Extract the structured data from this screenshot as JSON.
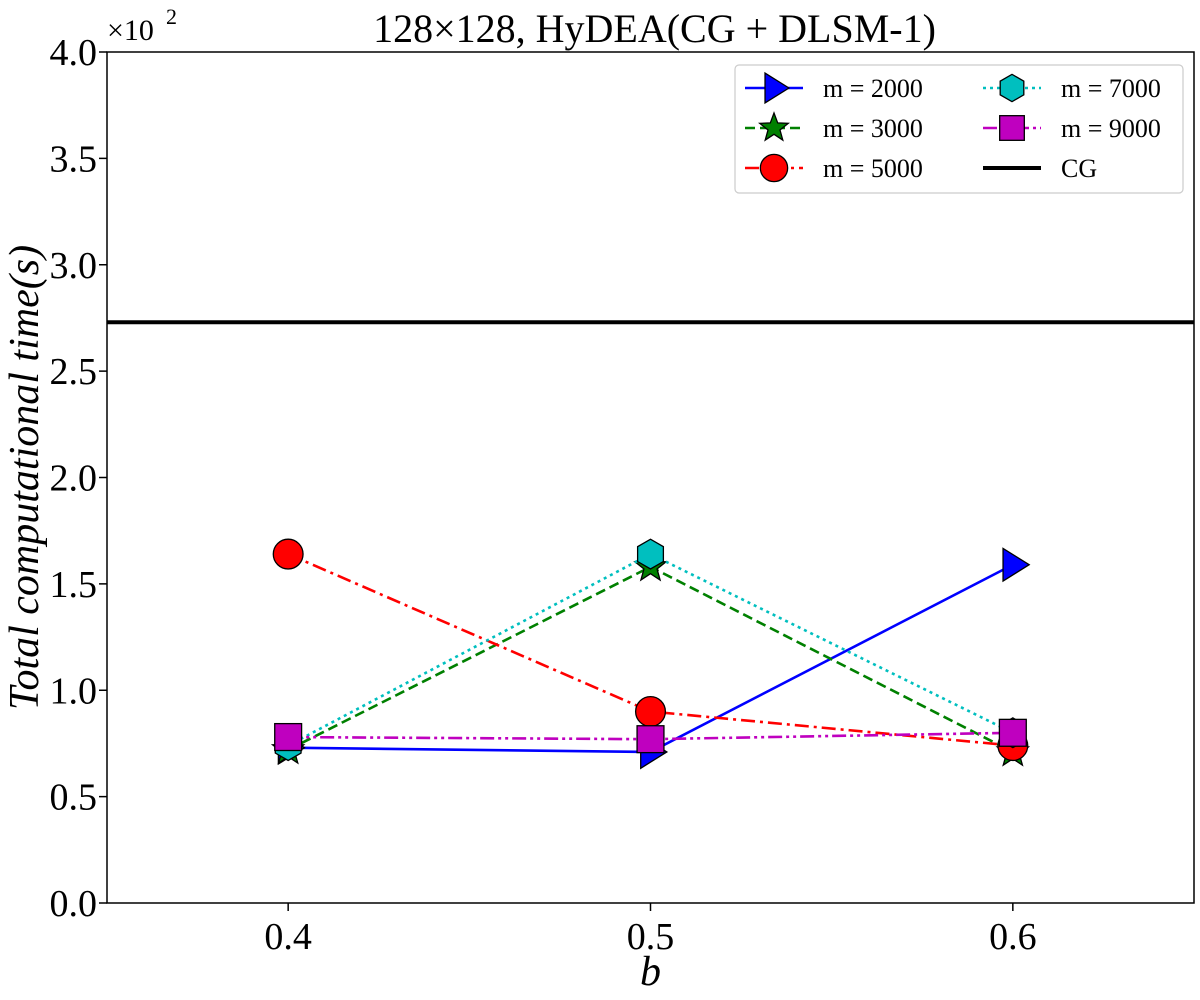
{
  "chart_data": {
    "type": "line",
    "title": "128×128, HyDEA(CG + DLSM-1)",
    "xlabel": "b",
    "ylabel": "Total computational time(s)",
    "y_multiplier": "×10",
    "y_multiplier_exp": "2",
    "x": [
      0.4,
      0.5,
      0.6
    ],
    "xlim": [
      0.35,
      0.65
    ],
    "ylim": [
      0.0,
      4.0
    ],
    "x_ticks": [
      "0.4",
      "0.5",
      "0.6"
    ],
    "y_ticks": [
      "0.0",
      "0.5",
      "1.0",
      "1.5",
      "2.0",
      "2.5",
      "3.0",
      "3.5",
      "4.0"
    ],
    "grid": false,
    "legend_position": "top-right",
    "series": [
      {
        "name": "m = 2000",
        "values": [
          0.73,
          0.71,
          1.59
        ],
        "color": "#0000ff",
        "dash": "",
        "marker": "triangle-right"
      },
      {
        "name": "m = 3000",
        "values": [
          0.72,
          1.58,
          0.71
        ],
        "color": "#008000",
        "dash": "10,5",
        "marker": "star"
      },
      {
        "name": "m = 5000",
        "values": [
          1.64,
          0.9,
          0.74
        ],
        "color": "#ff0000",
        "dash": "14,5,3,5",
        "marker": "circle"
      },
      {
        "name": "m = 7000",
        "values": [
          0.74,
          1.64,
          0.8
        ],
        "color": "#00bfbf",
        "dash": "3,4",
        "marker": "hexagon"
      },
      {
        "name": "m = 9000",
        "values": [
          0.78,
          0.77,
          0.8
        ],
        "color": "#bf00bf",
        "dash": "14,4,3,4,3,4",
        "marker": "square"
      },
      {
        "name": "CG",
        "constant": 2.73,
        "color": "#000000",
        "dash": "",
        "marker": "none"
      }
    ]
  }
}
